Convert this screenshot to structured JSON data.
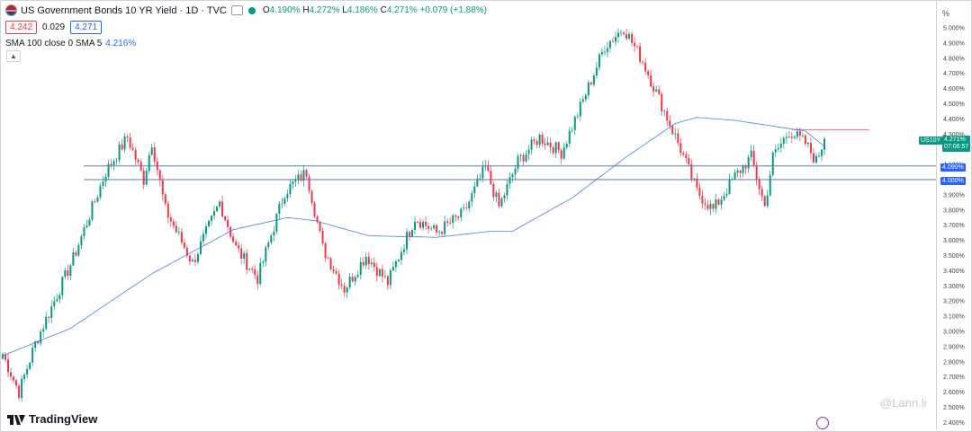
{
  "header": {
    "title": "US Government Bonds 10 YR Yield · 1D · TVC",
    "ohlc": {
      "o_label": "O",
      "o": "4.190%",
      "h_label": "H",
      "h": "4.272%",
      "l_label": "L",
      "l": "4.186%",
      "c_label": "C",
      "c": "4.271%",
      "change": "+0.079 (+1.88%)"
    },
    "bid": "4.242",
    "spread": "0.029",
    "ask": "4.271",
    "sma_label": "SMA 100 close 0 SMA 5",
    "sma_value": "4.216%"
  },
  "axis": {
    "unit": "%",
    "labels": [
      "5.000%",
      "4.900%",
      "4.800%",
      "4.700%",
      "4.600%",
      "4.500%",
      "4.400%",
      "4.300%",
      "4.200%",
      "4.100%",
      "3.900%",
      "3.800%",
      "3.700%",
      "3.600%",
      "3.500%",
      "3.400%",
      "3.300%",
      "3.200%",
      "3.100%",
      "3.000%",
      "2.900%",
      "2.800%",
      "2.700%",
      "2.600%",
      "2.500%",
      "2.400%"
    ]
  },
  "tags": {
    "symbol": "US10Y",
    "price": "4.271%",
    "countdown": "07:06:57",
    "level_upper": "4.090%",
    "level_lower": "4.000%"
  },
  "colors": {
    "up": "#089981",
    "down": "#f23645",
    "sma": "#2962ff",
    "level": "#5b7ab5",
    "resistance": "#f23645"
  },
  "footer": {
    "logo": "TradingView",
    "watermark": "@Lann.li"
  },
  "chart_data": {
    "type": "candlestick",
    "ylim": [
      2.4,
      5.07
    ],
    "horizontal_levels": [
      4.09,
      4.0
    ],
    "resistance_level": 4.33,
    "anchors": [
      [
        0,
        2.85
      ],
      [
        6,
        2.6
      ],
      [
        12,
        2.92
      ],
      [
        26,
        3.48
      ],
      [
        38,
        4.05
      ],
      [
        46,
        4.28
      ],
      [
        52,
        4.0
      ],
      [
        55,
        4.25
      ],
      [
        60,
        3.8
      ],
      [
        70,
        3.45
      ],
      [
        80,
        3.85
      ],
      [
        86,
        3.55
      ],
      [
        94,
        3.35
      ],
      [
        104,
        3.92
      ],
      [
        112,
        4.05
      ],
      [
        118,
        3.55
      ],
      [
        126,
        3.28
      ],
      [
        134,
        3.5
      ],
      [
        142,
        3.32
      ],
      [
        152,
        3.75
      ],
      [
        160,
        3.65
      ],
      [
        170,
        3.78
      ],
      [
        178,
        4.08
      ],
      [
        183,
        3.82
      ],
      [
        190,
        4.12
      ],
      [
        198,
        4.28
      ],
      [
        206,
        4.18
      ],
      [
        214,
        4.52
      ],
      [
        222,
        4.88
      ],
      [
        229,
        5.0
      ],
      [
        236,
        4.78
      ],
      [
        244,
        4.45
      ],
      [
        250,
        4.2
      ],
      [
        256,
        3.92
      ],
      [
        262,
        3.8
      ],
      [
        270,
        4.02
      ],
      [
        276,
        4.15
      ],
      [
        281,
        3.82
      ],
      [
        284,
        4.15
      ],
      [
        290,
        4.32
      ],
      [
        296,
        4.24
      ],
      [
        300,
        4.12
      ],
      [
        303,
        4.27
      ]
    ],
    "sma100_anchors": [
      [
        0,
        2.84
      ],
      [
        25,
        3.02
      ],
      [
        55,
        3.38
      ],
      [
        85,
        3.67
      ],
      [
        105,
        3.75
      ],
      [
        115,
        3.73
      ],
      [
        135,
        3.63
      ],
      [
        160,
        3.62
      ],
      [
        180,
        3.66
      ],
      [
        188,
        3.66
      ],
      [
        210,
        3.88
      ],
      [
        230,
        4.15
      ],
      [
        248,
        4.37
      ],
      [
        256,
        4.41
      ],
      [
        270,
        4.39
      ],
      [
        285,
        4.35
      ],
      [
        296,
        4.32
      ],
      [
        303,
        4.22
      ]
    ]
  }
}
